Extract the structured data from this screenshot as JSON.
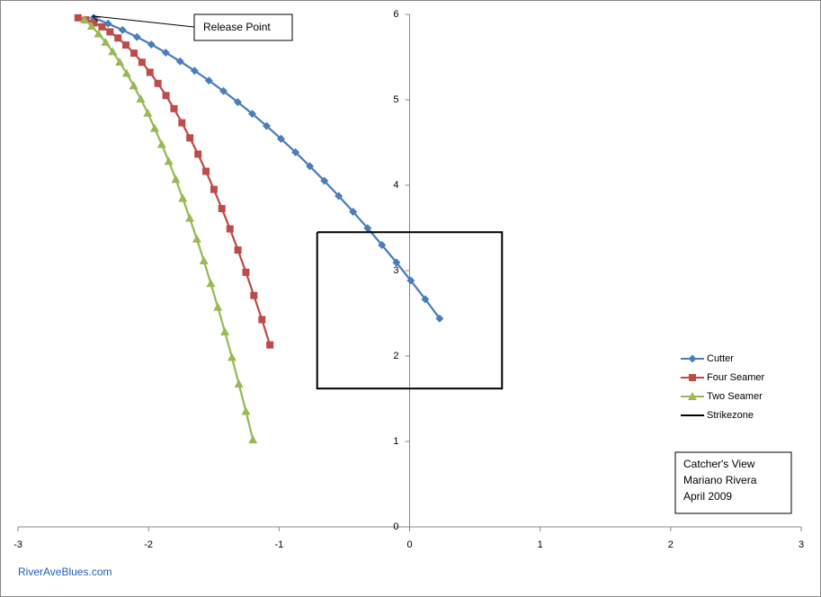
{
  "chart_data": {
    "type": "line",
    "annotation": "Release Point",
    "text_box": [
      "Catcher's View",
      "Mariano Rivera",
      "April 2009"
    ],
    "source": "RiverAveBlues.com",
    "xlim": [
      -3,
      3
    ],
    "ylim": [
      0,
      6
    ],
    "xticks": [
      -3,
      -2,
      -1,
      0,
      1,
      2,
      3
    ],
    "yticks": [
      0,
      1,
      2,
      3,
      4,
      5,
      6
    ],
    "legend": "right",
    "series": [
      {
        "name": "Cutter",
        "color": "#4a7ebb",
        "marker": "diamond",
        "x": [
          -2.42,
          -2.31,
          -2.199,
          -2.089,
          -1.978,
          -1.868,
          -1.758,
          -1.647,
          -1.537,
          -1.426,
          -1.316,
          -1.205,
          -1.095,
          -0.985,
          -0.874,
          -0.764,
          -0.653,
          -0.543,
          -0.433,
          -0.322,
          -0.212,
          -0.101,
          0.009,
          0.12,
          0.23
        ],
        "values": [
          5.96,
          5.892,
          5.817,
          5.736,
          5.647,
          5.552,
          5.45,
          5.34,
          5.225,
          5.102,
          4.972,
          4.836,
          4.693,
          4.543,
          4.386,
          4.222,
          4.051,
          3.874,
          3.69,
          3.498,
          3.3,
          3.096,
          2.884,
          2.665,
          2.44
        ]
      },
      {
        "name": "Four Seamer",
        "color": "#be4b48",
        "marker": "square",
        "x": [
          -2.54,
          -2.479,
          -2.418,
          -2.356,
          -2.295,
          -2.234,
          -2.173,
          -2.111,
          -2.05,
          -1.989,
          -1.928,
          -1.866,
          -1.805,
          -1.744,
          -1.683,
          -1.621,
          -1.56,
          -1.499,
          -1.438,
          -1.376,
          -1.315,
          -1.254,
          -1.193,
          -1.131,
          -1.07
        ],
        "values": [
          5.96,
          5.936,
          5.901,
          5.854,
          5.795,
          5.724,
          5.641,
          5.546,
          5.44,
          5.322,
          5.192,
          5.05,
          4.896,
          4.731,
          4.554,
          4.364,
          4.163,
          3.951,
          3.726,
          3.489,
          3.241,
          2.981,
          2.709,
          2.426,
          2.13
        ]
      },
      {
        "name": "Two Seamer",
        "color": "#98b954",
        "marker": "triangle",
        "x": [
          -2.49,
          -2.436,
          -2.383,
          -2.329,
          -2.275,
          -2.221,
          -2.168,
          -2.114,
          -2.06,
          -2.006,
          -1.953,
          -1.899,
          -1.845,
          -1.791,
          -1.738,
          -1.684,
          -1.63,
          -1.576,
          -1.523,
          -1.469,
          -1.415,
          -1.361,
          -1.308,
          -1.254,
          -1.2
        ],
        "values": [
          5.94,
          5.863,
          5.774,
          5.675,
          5.564,
          5.442,
          5.31,
          5.166,
          5.011,
          4.845,
          4.667,
          4.479,
          4.28,
          4.069,
          3.847,
          3.615,
          3.371,
          3.116,
          2.85,
          2.572,
          2.284,
          1.985,
          1.674,
          1.353,
          1.02
        ]
      },
      {
        "name": "Strikezone",
        "color": "#000000",
        "marker": "none",
        "x": [
          -0.708,
          0.708,
          0.708,
          -0.708,
          -0.708
        ],
        "values": [
          3.45,
          3.45,
          1.62,
          1.62,
          3.45
        ]
      }
    ]
  }
}
